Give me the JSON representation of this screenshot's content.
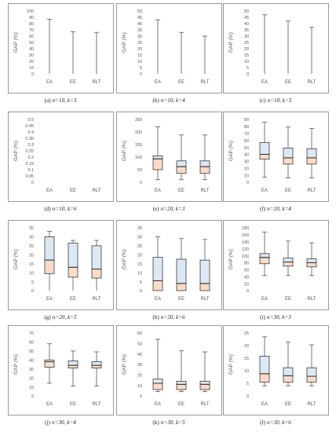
{
  "chart_data": [
    {
      "type": "box",
      "caption_letter": "(a)",
      "caption_params": "n=10, k=3",
      "ylabel": "GAP (%)",
      "ylim": [
        0,
        100
      ],
      "ytick_step": 10,
      "yticks": [
        "0",
        "10",
        "20",
        "30",
        "40",
        "50",
        "60",
        "70",
        "80",
        "90",
        "100"
      ],
      "categories": [
        "EA",
        "EE",
        "RLT"
      ],
      "boxes": [
        {
          "min": 0,
          "q1": 0,
          "median": 0,
          "q3": 0,
          "max": 87
        },
        {
          "min": 0,
          "q1": 0,
          "median": 0,
          "q3": 0,
          "max": 67
        },
        {
          "min": 0,
          "q1": 0,
          "median": 0,
          "q3": 0,
          "max": 66
        }
      ]
    },
    {
      "type": "box",
      "caption_letter": "(b)",
      "caption_params": "n=10, k=4",
      "ylabel": "GAP (%)",
      "ylim": [
        0,
        50
      ],
      "ytick_step": 5,
      "yticks": [
        "0",
        "5",
        "10",
        "15",
        "20",
        "25",
        "30",
        "35",
        "40",
        "45",
        "50"
      ],
      "categories": [
        "EA",
        "EE",
        "RLT"
      ],
      "boxes": [
        {
          "min": 0,
          "q1": 0,
          "median": 0,
          "q3": 0,
          "max": 43
        },
        {
          "min": 0,
          "q1": 0,
          "median": 0,
          "q3": 0,
          "max": 33
        },
        {
          "min": 0,
          "q1": 0,
          "median": 0,
          "q3": 0,
          "max": 30
        }
      ]
    },
    {
      "type": "box",
      "caption_letter": "(c)",
      "caption_params": "n=10, k=5",
      "ylabel": "GAP (%)",
      "ylim": [
        0,
        50
      ],
      "ytick_step": 5,
      "yticks": [
        "0",
        "5",
        "10",
        "15",
        "20",
        "25",
        "30",
        "35",
        "40",
        "45",
        "50"
      ],
      "categories": [
        "EA",
        "EE",
        "RLT"
      ],
      "boxes": [
        {
          "min": 0,
          "q1": 0,
          "median": 0,
          "q3": 0,
          "max": 47
        },
        {
          "min": 0,
          "q1": 0,
          "median": 0,
          "q3": 0,
          "max": 42
        },
        {
          "min": 0,
          "q1": 0,
          "median": 0,
          "q3": 0,
          "max": 37
        }
      ]
    },
    {
      "type": "box",
      "caption_letter": "(d)",
      "caption_params": "n=10, k=6",
      "ylabel": "GAP (%)",
      "ylim": [
        0,
        0.5
      ],
      "ytick_step": 0.05,
      "yticks": [
        "0",
        "0.05",
        "0.1",
        "0.15",
        "0.2",
        "0.25",
        "0.3",
        "0.35",
        "0.4",
        "0.45",
        "0.5"
      ],
      "categories": [
        "EA",
        "EE",
        "RLT"
      ],
      "boxes": [
        {
          "min": 0,
          "q1": 0,
          "median": 0,
          "q3": 0,
          "max": 0
        },
        {
          "min": 0,
          "q1": 0,
          "median": 0,
          "q3": 0,
          "max": 0
        },
        {
          "min": 0,
          "q1": 0,
          "median": 0,
          "q3": 0,
          "max": 0
        }
      ]
    },
    {
      "type": "box",
      "caption_letter": "(e)",
      "caption_params": "n=20, k=3",
      "ylabel": "GAP (%)",
      "ylim": [
        0,
        250
      ],
      "ytick_step": 50,
      "yticks": [
        "0",
        "50",
        "100",
        "150",
        "200",
        "250"
      ],
      "categories": [
        "EA",
        "EE",
        "RLT"
      ],
      "boxes": [
        {
          "min": 10,
          "q1": 50,
          "median": 93,
          "q3": 105,
          "max": 220
        },
        {
          "min": 10,
          "q1": 35,
          "median": 62,
          "q3": 85,
          "max": 188
        },
        {
          "min": 10,
          "q1": 35,
          "median": 62,
          "q3": 85,
          "max": 188
        }
      ]
    },
    {
      "type": "box",
      "caption_letter": "(f)",
      "caption_params": "n=20, k=4",
      "ylabel": "GAP (%)",
      "ylim": [
        0,
        90
      ],
      "ytick_step": 10,
      "yticks": [
        "0",
        "10",
        "20",
        "30",
        "40",
        "50",
        "60",
        "70",
        "80",
        "90"
      ],
      "categories": [
        "EA",
        "EE",
        "RLT"
      ],
      "boxes": [
        {
          "min": 7,
          "q1": 33,
          "median": 40,
          "q3": 57,
          "max": 86
        },
        {
          "min": 6,
          "q1": 26,
          "median": 35,
          "q3": 49,
          "max": 79
        },
        {
          "min": 6,
          "q1": 26,
          "median": 35,
          "q3": 48,
          "max": 77
        }
      ]
    },
    {
      "type": "box",
      "caption_letter": "(g)",
      "caption_params": "n=20, k=5",
      "ylabel": "GAP (%)",
      "ylim": [
        0,
        35
      ],
      "ytick_step": 5,
      "yticks": [
        "0",
        "5",
        "10",
        "15",
        "20",
        "25",
        "30",
        "35"
      ],
      "categories": [
        "EA",
        "EE",
        "RLT"
      ],
      "boxes": [
        {
          "min": 0,
          "q1": 9.5,
          "median": 17,
          "q3": 30,
          "max": 33
        },
        {
          "min": 0,
          "q1": 7.5,
          "median": 13,
          "q3": 26.5,
          "max": 28
        },
        {
          "min": 0,
          "q1": 7,
          "median": 12,
          "q3": 25,
          "max": 28
        }
      ]
    },
    {
      "type": "box",
      "caption_letter": "(h)",
      "caption_params": "n=20, k=6",
      "ylabel": "GAP (%)",
      "ylim": [
        0,
        35
      ],
      "ytick_step": 5,
      "yticks": [
        "0",
        "5",
        "10",
        "15",
        "20",
        "25",
        "30",
        "35"
      ],
      "categories": [
        "EA",
        "EE",
        "RLT"
      ],
      "boxes": [
        {
          "min": 0,
          "q1": 0,
          "median": 5.5,
          "q3": 18.5,
          "max": 30
        },
        {
          "min": 0,
          "q1": 0,
          "median": 4,
          "q3": 17.5,
          "max": 29
        },
        {
          "min": 0,
          "q1": 0,
          "median": 4,
          "q3": 17,
          "max": 28.5
        }
      ]
    },
    {
      "type": "box",
      "caption_letter": "(i)",
      "caption_params": "n=30, k=3",
      "ylabel": "GAP (%)",
      "ylim": [
        0,
        180
      ],
      "ytick_step": 20,
      "yticks": [
        "0",
        "20",
        "40",
        "60",
        "80",
        "100",
        "120",
        "140",
        "160",
        "180"
      ],
      "categories": [
        "EA",
        "EE",
        "RLT"
      ],
      "boxes": [
        {
          "min": 43,
          "q1": 77,
          "median": 95,
          "q3": 106,
          "max": 168
        },
        {
          "min": 43,
          "q1": 70,
          "median": 82,
          "q3": 93,
          "max": 142
        },
        {
          "min": 43,
          "q1": 68,
          "median": 80,
          "q3": 91,
          "max": 137
        }
      ]
    },
    {
      "type": "box",
      "caption_letter": "(j)",
      "caption_params": "n=30, k=4",
      "ylabel": "GAP (%)",
      "ylim": [
        0,
        70
      ],
      "ytick_step": 10,
      "yticks": [
        "0",
        "10",
        "20",
        "30",
        "40",
        "50",
        "60",
        "70"
      ],
      "categories": [
        "EA",
        "EE",
        "RLT"
      ],
      "boxes": [
        {
          "min": 14,
          "q1": 32,
          "median": 38,
          "q3": 40,
          "max": 58
        },
        {
          "min": 11,
          "q1": 31,
          "median": 34,
          "q3": 39,
          "max": 50
        },
        {
          "min": 11,
          "q1": 31,
          "median": 34,
          "q3": 38,
          "max": 49
        }
      ]
    },
    {
      "type": "box",
      "caption_letter": "(k)",
      "caption_params": "n=30, k=5",
      "ylabel": "GAP (%)",
      "ylim": [
        0,
        60
      ],
      "ytick_step": 10,
      "yticks": [
        "0",
        "10",
        "20",
        "30",
        "40",
        "50",
        "60"
      ],
      "categories": [
        "EA",
        "EE",
        "RLT"
      ],
      "boxes": [
        {
          "min": 4,
          "q1": 6,
          "median": 12,
          "q3": 16,
          "max": 54
        },
        {
          "min": 4,
          "q1": 6,
          "median": 11,
          "q3": 14,
          "max": 43
        },
        {
          "min": 4,
          "q1": 6,
          "median": 11,
          "q3": 14,
          "max": 42
        }
      ]
    },
    {
      "type": "box",
      "caption_letter": "(l)",
      "caption_params": "n=30, k=6",
      "ylabel": "GAP (%)",
      "ylim": [
        0,
        25
      ],
      "ytick_step": 5,
      "yticks": [
        "0",
        "5",
        "10",
        "15",
        "20",
        "25"
      ],
      "categories": [
        "EA",
        "EE",
        "RLT"
      ],
      "boxes": [
        {
          "min": 4,
          "q1": 5.5,
          "median": 8.8,
          "q3": 15.8,
          "max": 23.5
        },
        {
          "min": 4,
          "q1": 5.5,
          "median": 8,
          "q3": 11.2,
          "max": 21.5
        },
        {
          "min": 4,
          "q1": 5.5,
          "median": 7.8,
          "q3": 11.2,
          "max": 20.3
        }
      ]
    }
  ],
  "colors": {
    "frame": "#9a9a9a",
    "whisker": "#555555",
    "box_edge": "#3a3a3a",
    "box_lower": "#f8dcc8",
    "box_upper": "#dce8f5",
    "median": "#333333",
    "text": "#555555"
  }
}
